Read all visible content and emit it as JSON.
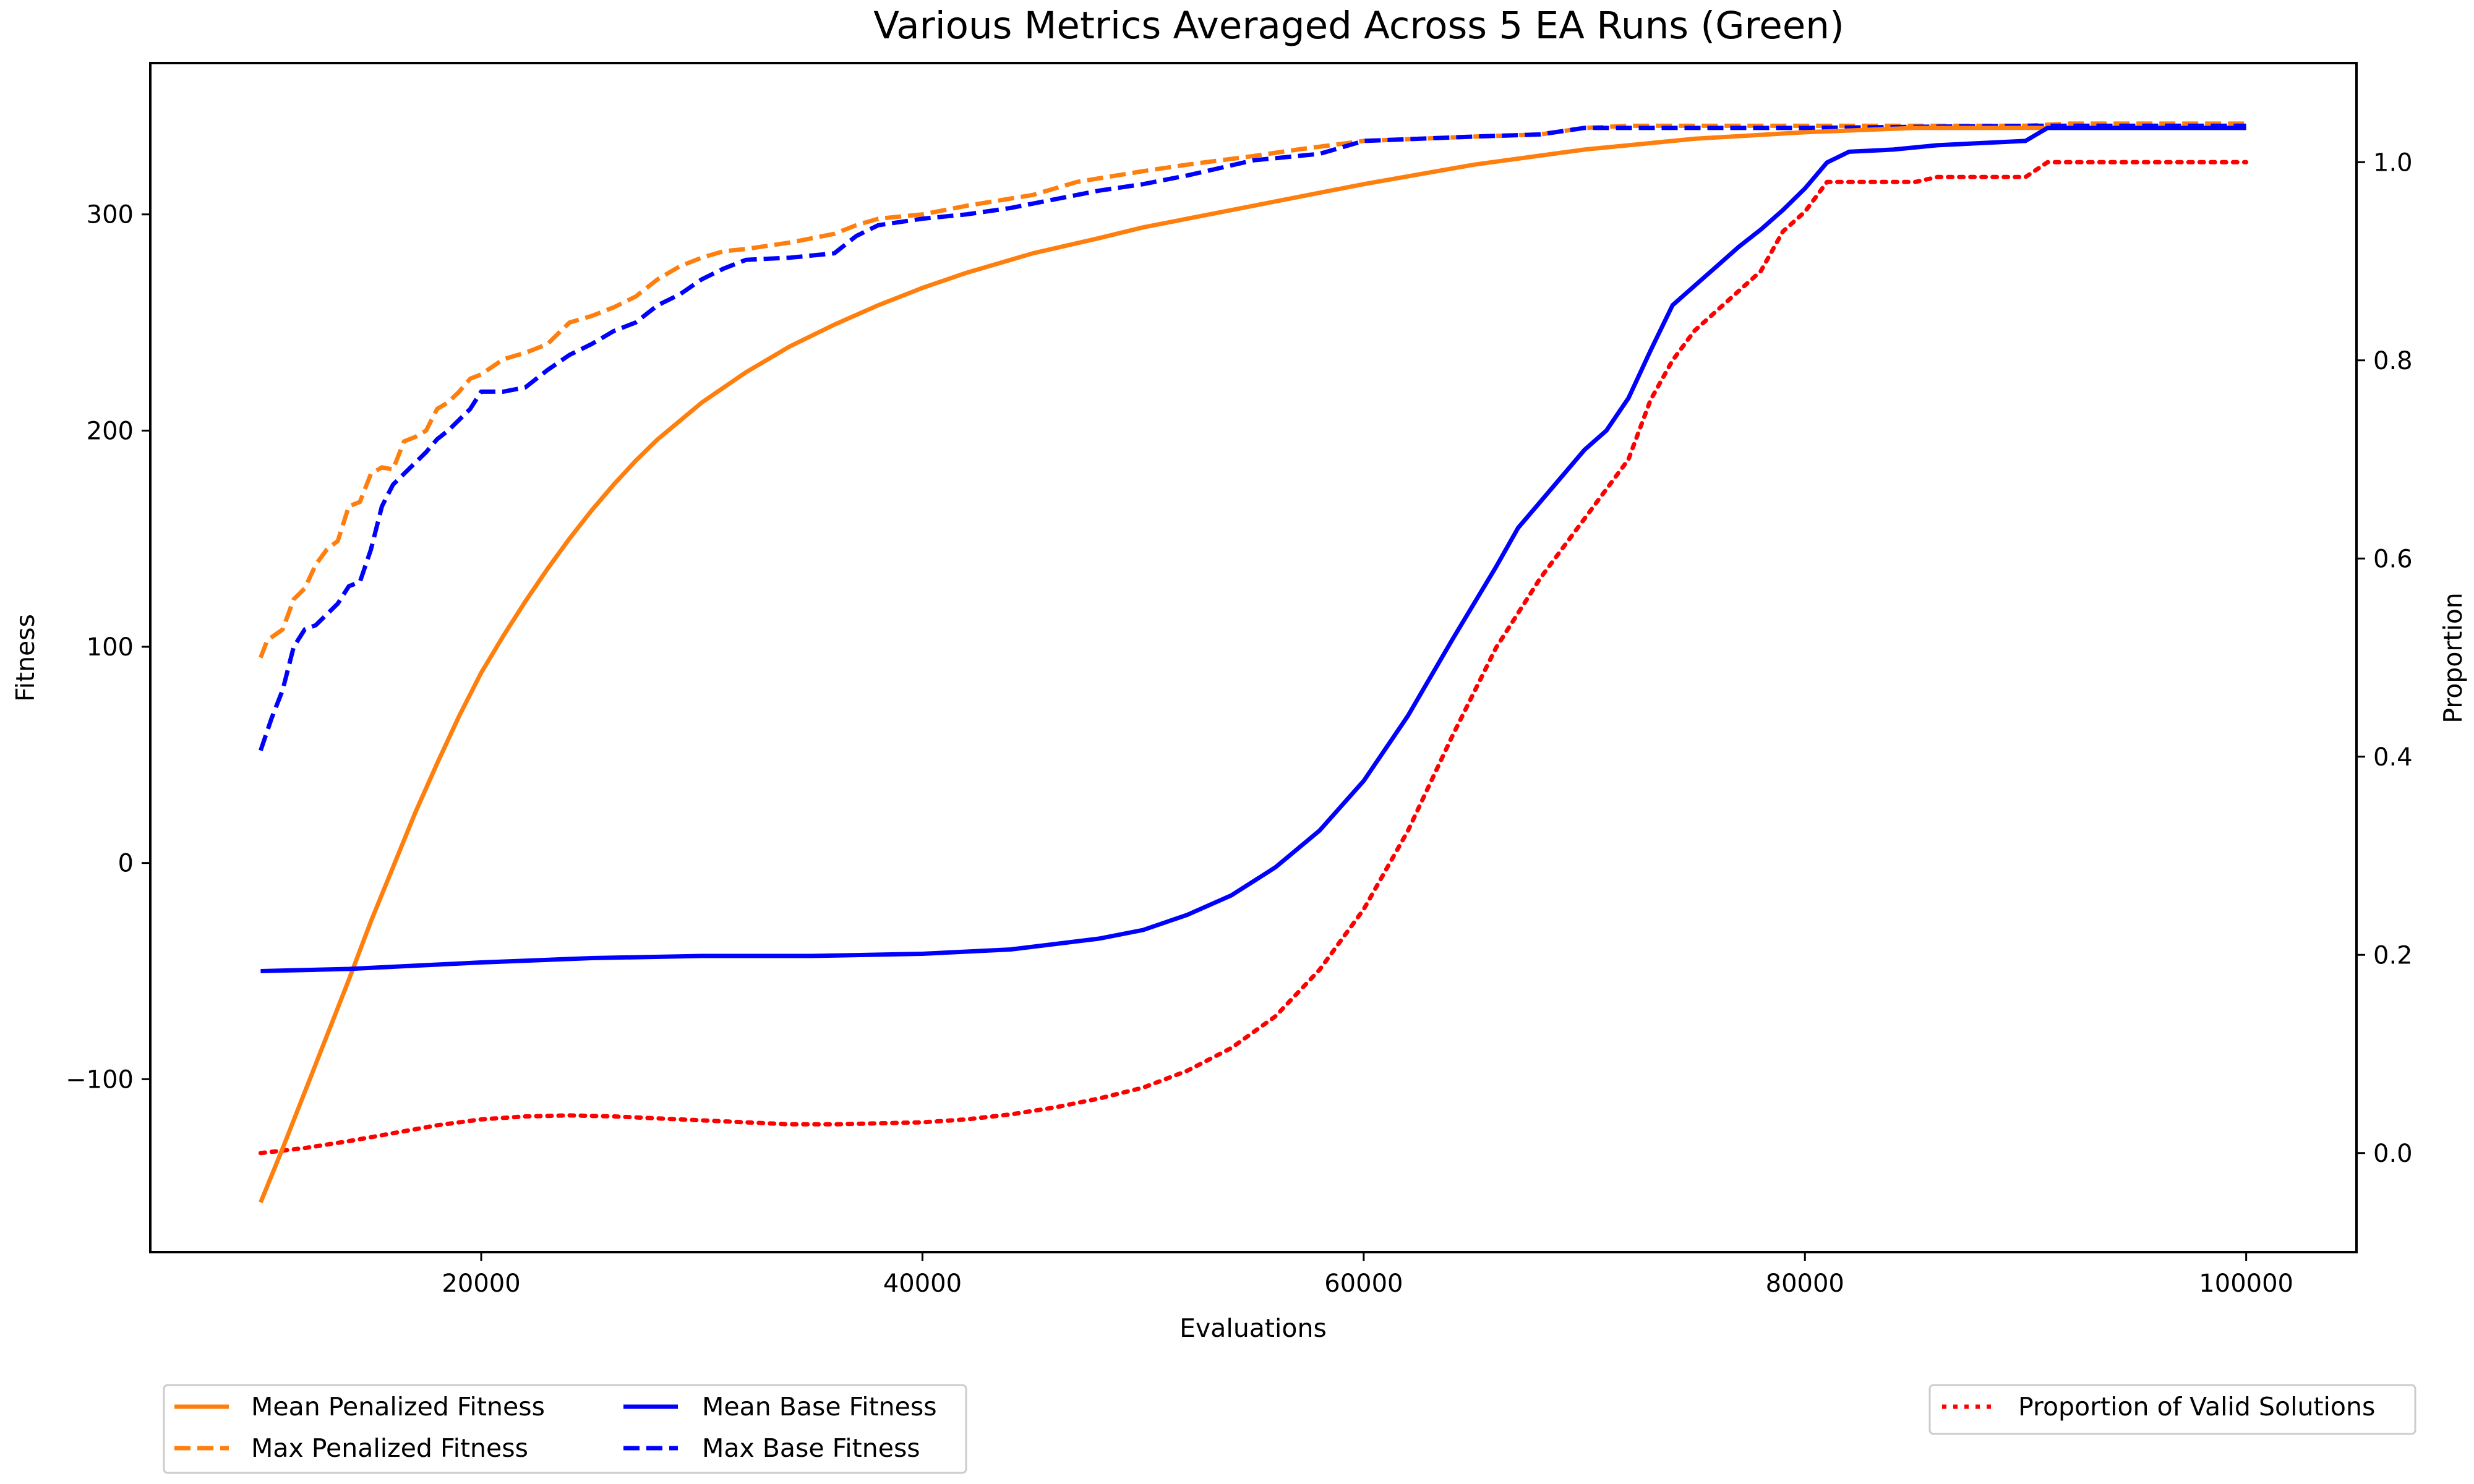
{
  "chart_data": {
    "type": "line",
    "title": "Various Metrics Averaged Across 5 EA Runs (Green)",
    "xlabel": "Evaluations",
    "ylabel": "Fitness",
    "y2label": "Proportion",
    "xlim": [
      5000,
      105000
    ],
    "ylim": [
      -180,
      370
    ],
    "y2lim": [
      -0.1,
      1.1
    ],
    "xticks": [
      20000,
      40000,
      60000,
      80000,
      100000
    ],
    "yticks": [
      -100,
      0,
      100,
      200,
      300
    ],
    "y2ticks": [
      0.0,
      0.2,
      0.4,
      0.6,
      0.8,
      1.0
    ],
    "xtick_labels": [
      "20000",
      "40000",
      "60000",
      "80000",
      "100000"
    ],
    "ytick_labels": [
      "−100",
      "0",
      "100",
      "200",
      "300"
    ],
    "y2tick_labels": [
      "0.0",
      "0.2",
      "0.4",
      "0.6",
      "0.8",
      "1.0"
    ],
    "grid": false,
    "legend_placement": "below-left and below-right",
    "series": [
      {
        "name": "Mean Penalized Fitness",
        "axis": "left",
        "style": "solid",
        "color": "#ff7f0e",
        "points": [
          [
            10000,
            -157
          ],
          [
            11000,
            -132
          ],
          [
            12000,
            -106
          ],
          [
            13000,
            -80
          ],
          [
            14000,
            -54
          ],
          [
            15000,
            -27
          ],
          [
            16000,
            -2
          ],
          [
            17000,
            23
          ],
          [
            18000,
            46
          ],
          [
            19000,
            68
          ],
          [
            20000,
            88
          ],
          [
            21000,
            105
          ],
          [
            22000,
            121
          ],
          [
            23000,
            136
          ],
          [
            24000,
            150
          ],
          [
            25000,
            163
          ],
          [
            26000,
            175
          ],
          [
            27000,
            186
          ],
          [
            28000,
            196
          ],
          [
            30000,
            213
          ],
          [
            32000,
            227
          ],
          [
            34000,
            239
          ],
          [
            36000,
            249
          ],
          [
            38000,
            258
          ],
          [
            40000,
            266
          ],
          [
            42000,
            273
          ],
          [
            45000,
            282
          ],
          [
            48000,
            289
          ],
          [
            50000,
            294
          ],
          [
            55000,
            304
          ],
          [
            60000,
            314
          ],
          [
            65000,
            323
          ],
          [
            70000,
            330
          ],
          [
            75000,
            335
          ],
          [
            80000,
            338
          ],
          [
            85000,
            340
          ],
          [
            90000,
            340
          ],
          [
            100000,
            340
          ]
        ]
      },
      {
        "name": "Max Penalized Fitness",
        "axis": "left",
        "style": "dashed",
        "color": "#ff7f0e",
        "points": [
          [
            10000,
            95
          ],
          [
            10300,
            103
          ],
          [
            11000,
            108
          ],
          [
            11500,
            122
          ],
          [
            12000,
            127
          ],
          [
            12500,
            138
          ],
          [
            13000,
            145
          ],
          [
            13500,
            149
          ],
          [
            14000,
            165
          ],
          [
            14500,
            167
          ],
          [
            15000,
            180
          ],
          [
            15500,
            183
          ],
          [
            16000,
            182
          ],
          [
            16500,
            195
          ],
          [
            17000,
            197
          ],
          [
            17500,
            200
          ],
          [
            18000,
            210
          ],
          [
            18500,
            213
          ],
          [
            19000,
            218
          ],
          [
            19500,
            224
          ],
          [
            20000,
            226
          ],
          [
            21000,
            233
          ],
          [
            22000,
            236
          ],
          [
            23000,
            240
          ],
          [
            24000,
            250
          ],
          [
            25000,
            253
          ],
          [
            26000,
            257
          ],
          [
            27000,
            262
          ],
          [
            28000,
            270
          ],
          [
            29000,
            276
          ],
          [
            30000,
            280
          ],
          [
            31000,
            283
          ],
          [
            32000,
            284
          ],
          [
            34000,
            287
          ],
          [
            36000,
            291
          ],
          [
            37000,
            295
          ],
          [
            38000,
            298
          ],
          [
            40000,
            300
          ],
          [
            42000,
            304
          ],
          [
            45000,
            309
          ],
          [
            47000,
            315
          ],
          [
            50000,
            320
          ],
          [
            52000,
            323
          ],
          [
            55000,
            327
          ],
          [
            57000,
            330
          ],
          [
            60000,
            334
          ],
          [
            65000,
            336
          ],
          [
            68000,
            337
          ],
          [
            70000,
            340
          ],
          [
            72000,
            341
          ],
          [
            75000,
            341
          ],
          [
            80000,
            341
          ],
          [
            90000,
            341
          ],
          [
            92000,
            342
          ],
          [
            100000,
            342
          ]
        ]
      },
      {
        "name": "Mean Base Fitness",
        "axis": "left",
        "style": "solid",
        "color": "#0000ff",
        "points": [
          [
            10000,
            -50
          ],
          [
            14000,
            -49
          ],
          [
            20000,
            -46
          ],
          [
            25000,
            -44
          ],
          [
            30000,
            -43
          ],
          [
            35000,
            -43
          ],
          [
            40000,
            -42
          ],
          [
            44000,
            -40
          ],
          [
            48000,
            -35
          ],
          [
            50000,
            -31
          ],
          [
            52000,
            -24
          ],
          [
            54000,
            -15
          ],
          [
            56000,
            -2
          ],
          [
            58000,
            15
          ],
          [
            60000,
            38
          ],
          [
            62000,
            68
          ],
          [
            64000,
            103
          ],
          [
            66000,
            137
          ],
          [
            67000,
            155
          ],
          [
            68000,
            167
          ],
          [
            69000,
            179
          ],
          [
            70000,
            191
          ],
          [
            71000,
            200
          ],
          [
            72000,
            215
          ],
          [
            73000,
            237
          ],
          [
            74000,
            258
          ],
          [
            75000,
            267
          ],
          [
            76000,
            276
          ],
          [
            77000,
            285
          ],
          [
            78000,
            293
          ],
          [
            79000,
            302
          ],
          [
            80000,
            312
          ],
          [
            81000,
            324
          ],
          [
            82000,
            329
          ],
          [
            84000,
            330
          ],
          [
            86000,
            332
          ],
          [
            90000,
            334
          ],
          [
            91000,
            340
          ],
          [
            100000,
            340
          ]
        ]
      },
      {
        "name": "Max Base Fitness",
        "axis": "left",
        "style": "dashed",
        "color": "#0000ff",
        "points": [
          [
            10000,
            52
          ],
          [
            10500,
            67
          ],
          [
            11000,
            80
          ],
          [
            11500,
            100
          ],
          [
            12000,
            108
          ],
          [
            12500,
            110
          ],
          [
            13000,
            115
          ],
          [
            13500,
            120
          ],
          [
            14000,
            128
          ],
          [
            14500,
            130
          ],
          [
            15000,
            145
          ],
          [
            15500,
            165
          ],
          [
            16000,
            175
          ],
          [
            16500,
            180
          ],
          [
            17000,
            185
          ],
          [
            17500,
            190
          ],
          [
            18000,
            196
          ],
          [
            18500,
            200
          ],
          [
            19000,
            205
          ],
          [
            19500,
            210
          ],
          [
            20000,
            218
          ],
          [
            21000,
            218
          ],
          [
            22000,
            220
          ],
          [
            23000,
            228
          ],
          [
            24000,
            235
          ],
          [
            25000,
            240
          ],
          [
            26000,
            246
          ],
          [
            27000,
            250
          ],
          [
            28000,
            258
          ],
          [
            29000,
            263
          ],
          [
            30000,
            270
          ],
          [
            31000,
            275
          ],
          [
            32000,
            279
          ],
          [
            34000,
            280
          ],
          [
            36000,
            282
          ],
          [
            37000,
            290
          ],
          [
            38000,
            295
          ],
          [
            40000,
            298
          ],
          [
            42000,
            300
          ],
          [
            44000,
            303
          ],
          [
            46000,
            307
          ],
          [
            48000,
            311
          ],
          [
            50000,
            314
          ],
          [
            52000,
            318
          ],
          [
            55000,
            325
          ],
          [
            58000,
            328
          ],
          [
            60000,
            334
          ],
          [
            65000,
            336
          ],
          [
            68000,
            337
          ],
          [
            70000,
            340
          ],
          [
            75000,
            340
          ],
          [
            80000,
            340
          ],
          [
            90000,
            341
          ],
          [
            100000,
            341
          ]
        ]
      },
      {
        "name": "Proportion of Valid Solutions",
        "axis": "right",
        "style": "dotted",
        "color": "#ff0000",
        "points": [
          [
            10000,
            0.0
          ],
          [
            12000,
            0.005
          ],
          [
            14000,
            0.012
          ],
          [
            16000,
            0.02
          ],
          [
            18000,
            0.028
          ],
          [
            20000,
            0.034
          ],
          [
            22000,
            0.037
          ],
          [
            24000,
            0.038
          ],
          [
            26000,
            0.037
          ],
          [
            28000,
            0.035
          ],
          [
            30000,
            0.033
          ],
          [
            32000,
            0.031
          ],
          [
            34000,
            0.029
          ],
          [
            36000,
            0.029
          ],
          [
            38000,
            0.03
          ],
          [
            40000,
            0.031
          ],
          [
            42000,
            0.034
          ],
          [
            44000,
            0.039
          ],
          [
            46000,
            0.046
          ],
          [
            48000,
            0.055
          ],
          [
            50000,
            0.066
          ],
          [
            52000,
            0.083
          ],
          [
            54000,
            0.106
          ],
          [
            56000,
            0.138
          ],
          [
            58000,
            0.185
          ],
          [
            60000,
            0.246
          ],
          [
            62000,
            0.325
          ],
          [
            64000,
            0.42
          ],
          [
            66000,
            0.51
          ],
          [
            68000,
            0.58
          ],
          [
            70000,
            0.64
          ],
          [
            72000,
            0.7
          ],
          [
            73000,
            0.76
          ],
          [
            74000,
            0.8
          ],
          [
            75000,
            0.83
          ],
          [
            76000,
            0.85
          ],
          [
            77000,
            0.87
          ],
          [
            78000,
            0.89
          ],
          [
            79000,
            0.93
          ],
          [
            80000,
            0.95
          ],
          [
            81000,
            0.98
          ],
          [
            82000,
            0.98
          ],
          [
            85000,
            0.98
          ],
          [
            86000,
            0.985
          ],
          [
            90000,
            0.985
          ],
          [
            91000,
            1.0
          ],
          [
            100000,
            1.0
          ]
        ]
      }
    ]
  }
}
